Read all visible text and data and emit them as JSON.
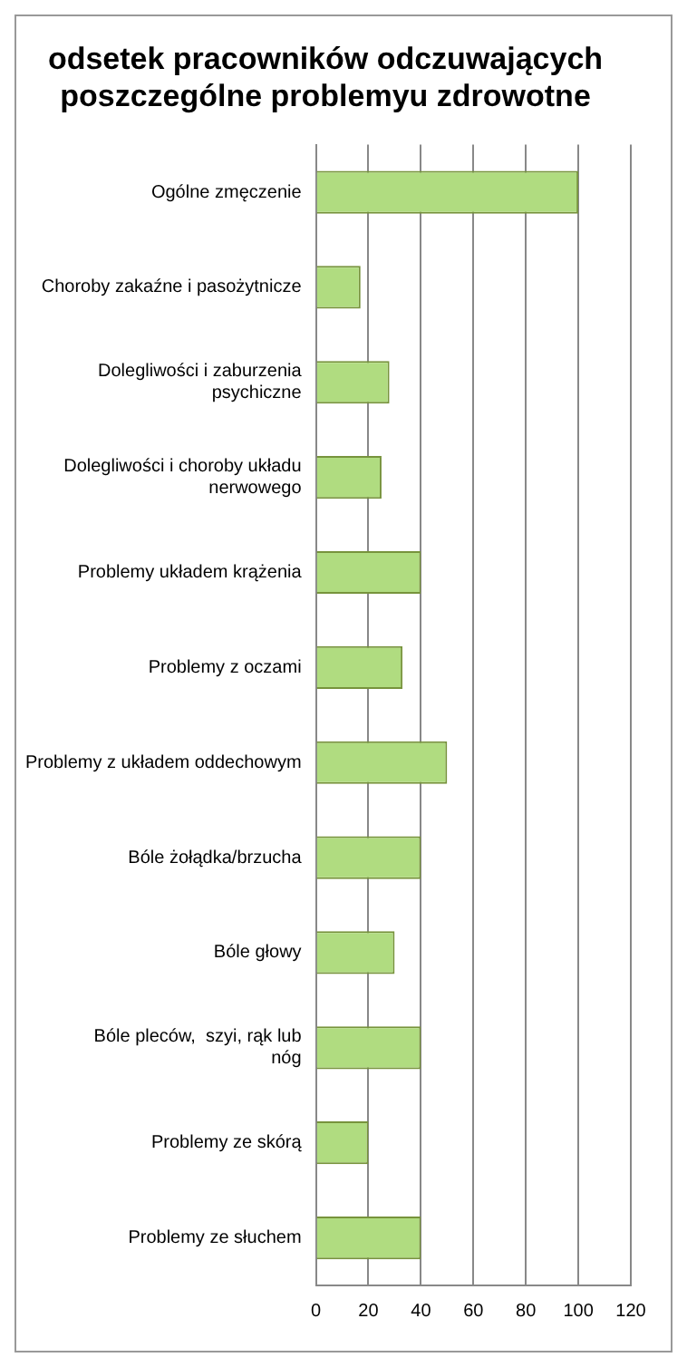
{
  "chart_data": {
    "type": "bar",
    "orientation": "horizontal",
    "title": "odsetek pracowników odczuwających poszczególne problemyu zdrowotne",
    "categories": [
      "Ogólne zmęczenie",
      "Choroby zakaźne i pasożytnicze",
      "Dolegliwości i zaburzenia psychiczne",
      "Dolegliwości i choroby układu nerwowego",
      "Problemy układem krążenia",
      "Problemy z oczami",
      "Problemy z układem oddechowym",
      "Bóle żołądka/brzucha",
      "Bóle głowy",
      "Bóle pleców,  szyi, rąk lub nóg",
      "Problemy ze skórą",
      "Problemy ze słuchem"
    ],
    "values": [
      100,
      17,
      28,
      25,
      40,
      33,
      50,
      40,
      30,
      40,
      20,
      40
    ],
    "color": "#b0dc80",
    "xlim": [
      0,
      120
    ],
    "xticks": [
      0,
      20,
      40,
      60,
      80,
      100,
      120
    ],
    "grid": "x",
    "legend": false
  }
}
